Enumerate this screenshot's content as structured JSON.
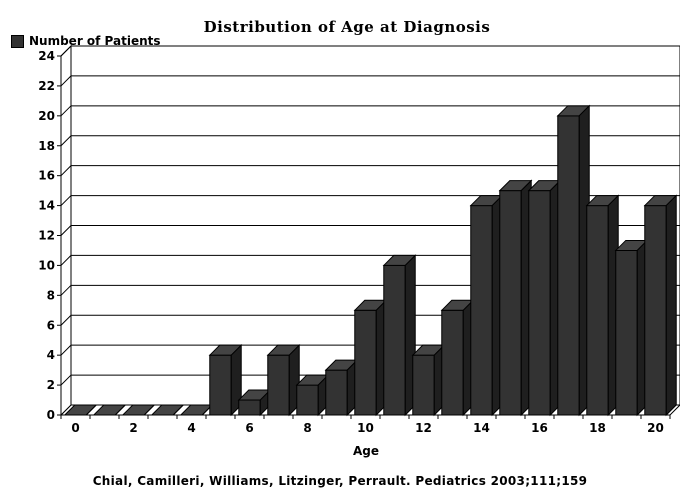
{
  "chart_data": {
    "type": "bar",
    "title": "Distribution of Age at Diagnosis",
    "xlabel": "Age",
    "ylabel": "",
    "ylim": [
      0,
      24
    ],
    "y_ticks": [
      0,
      2,
      4,
      6,
      8,
      10,
      12,
      14,
      16,
      18,
      20,
      22,
      24
    ],
    "x_tick_labels": [
      "0",
      "2",
      "4",
      "6",
      "8",
      "10",
      "12",
      "14",
      "16",
      "18",
      "20"
    ],
    "categories": [
      0,
      1,
      2,
      3,
      4,
      5,
      6,
      7,
      8,
      9,
      10,
      11,
      12,
      13,
      14,
      15,
      16,
      17,
      18,
      19,
      20
    ],
    "series": [
      {
        "name": "Number of Patients",
        "color": "#333333",
        "values": [
          0,
          0,
          0,
          0,
          0,
          4,
          1,
          4,
          2,
          3,
          7,
          10,
          4,
          7,
          14,
          15,
          15,
          20,
          14,
          11,
          14
        ]
      }
    ],
    "grid": "horizontal",
    "legend_position": "top-left",
    "bar_style": "3d"
  },
  "footer": {
    "citation": "Chial, Camilleri, Williams, Litzinger, Perrault. Pediatrics 2003;111;159"
  }
}
